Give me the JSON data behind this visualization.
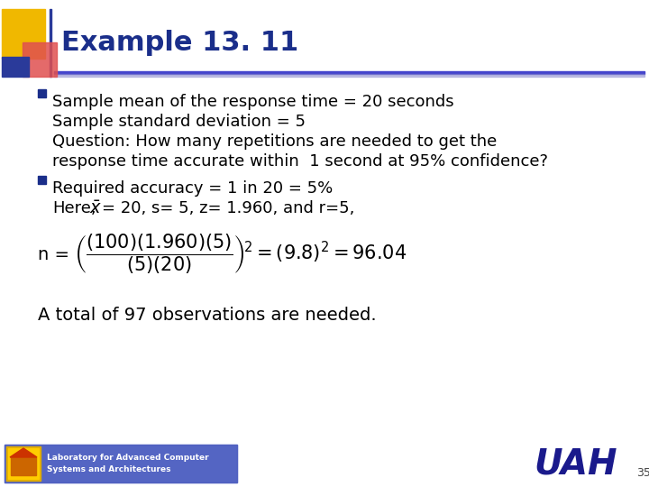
{
  "title": "Example 13. 11",
  "title_color": "#1a2e8a",
  "title_fontsize": 22,
  "background_color": "#ffffff",
  "bullet1_lines": [
    "Sample mean of the response time = 20 seconds",
    "Sample standard deviation = 5",
    "Question: How many repetitions are needed to get the",
    "response time accurate within  1 second at 95% confidence?"
  ],
  "bullet2_line1": "Required accuracy = 1 in 20 = 5%",
  "bullet2_line2_pre": "Here,  ",
  "bullet2_line2_post": " = 20, s= 5, z= 1.960, and r=5,",
  "conclusion": "A total of 97 observations are needed.",
  "uah_color": "#1a1a8c",
  "page_number": "35",
  "footer_text": "Laboratory for Advanced Computer\nSystems and Architectures",
  "body_fontsize": 13,
  "body_color": "#000000",
  "formula_color": "#000000",
  "formula_fontsize": 15,
  "n_label_fontsize": 14,
  "bullet_color": "#1a2e8a"
}
